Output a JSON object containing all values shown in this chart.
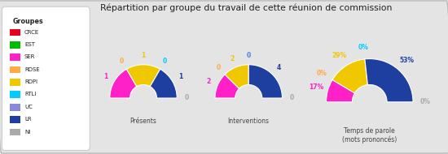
{
  "title": "Répartition par groupe du travail de cette réunion de commission",
  "background_color": "#e4e4e4",
  "groups": [
    "CRCE",
    "EST",
    "SER",
    "RDSE",
    "RDPI",
    "RTLI",
    "UC",
    "LR",
    "NI"
  ],
  "colors": [
    "#e8001c",
    "#00bb00",
    "#ff20c8",
    "#ffaa44",
    "#f0c800",
    "#00ccff",
    "#8888dd",
    "#1e3fa0",
    "#aaaaaa"
  ],
  "presents": [
    0,
    0,
    1,
    0,
    1,
    0,
    0,
    1,
    0
  ],
  "interventions": [
    0,
    0,
    2,
    0,
    2,
    0,
    0,
    4,
    0
  ],
  "temps_parole": [
    0,
    0,
    17,
    0,
    29,
    0,
    0,
    53,
    0
  ],
  "p_labels": [
    "",
    "",
    "1",
    "0",
    "1",
    "0",
    "",
    "1",
    "0"
  ],
  "i_labels": [
    "",
    "",
    "2",
    "0",
    "2",
    "0",
    "0",
    "4",
    "0"
  ],
  "t_labels": [
    "",
    "",
    "17%",
    "0%",
    "29%",
    "0%",
    "",
    "53%",
    "0%"
  ],
  "chart1_title": "Présents",
  "chart2_title": "Interventions",
  "chart3_title": "Temps de parole\n(mots prononcés)"
}
